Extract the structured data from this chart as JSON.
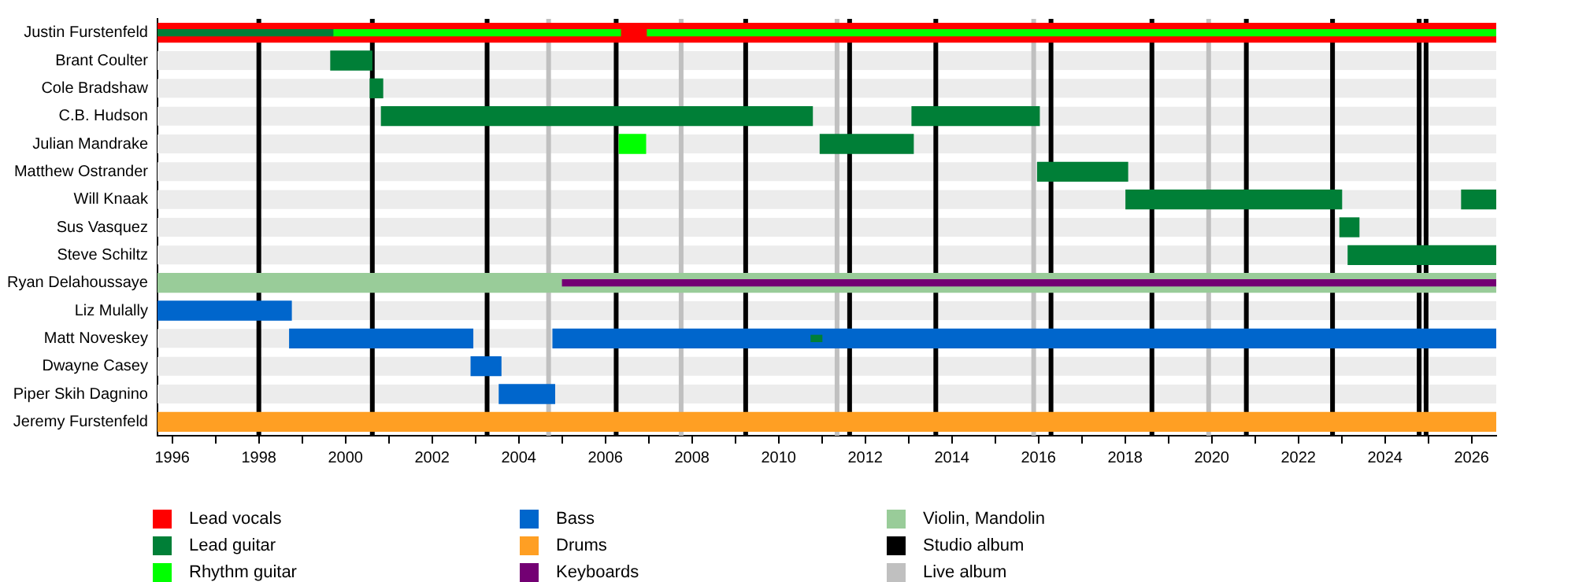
{
  "chart_data": {
    "type": "bar",
    "orientation": "horizontal",
    "categories": [
      "Justin Furstenfeld",
      "Brant Coulter",
      "Cole Bradshaw",
      "C.B. Hudson",
      "Julian Mandrake",
      "Matthew Ostrander",
      "Will Knaak",
      "Sus Vasquez",
      "Steve Schiltz",
      "Ryan Delahoussaye",
      "Liz Mulally",
      "Matt Noveskey",
      "Dwayne Casey",
      "Piper Skih Dagnino",
      "Jeremy Furstenfeld"
    ],
    "series": [
      {
        "name": "Lead vocals",
        "color": "#ff0000",
        "base": [
          1995.66,
          null,
          null,
          null,
          null,
          null,
          null,
          null,
          null,
          null,
          null,
          null,
          null,
          null,
          null
        ],
        "values": [
          30.91,
          null,
          null,
          null,
          null,
          null,
          null,
          null,
          null,
          null,
          null,
          null,
          null,
          null,
          null
        ]
      },
      {
        "name": "Lead guitar",
        "color": "#007f37",
        "base": [
          1995.66,
          1999.66,
          2000.57,
          2000.83,
          2010.96,
          2015.98,
          2018.02,
          2022.96,
          2023.15,
          null,
          null,
          2010.75,
          null,
          null,
          null
        ],
        "values": [
          4.05,
          0.95,
          0.29,
          9.95,
          2.15,
          2.08,
          4.98,
          0.44,
          3.42,
          null,
          null,
          0.25,
          null,
          null,
          null
        ]
      },
      {
        "color": "#007f37",
        "base": [
          null,
          null,
          null,
          2013.08,
          null,
          null,
          2025.77,
          null,
          null,
          null,
          null,
          null,
          null,
          null,
          null
        ],
        "values": [
          null,
          null,
          null,
          2.94,
          null,
          null,
          0.8,
          null,
          null,
          null,
          null,
          null,
          null,
          null,
          null
        ]
      },
      {
        "name": "Rhythm guitar",
        "color": "#00ff00",
        "base": [
          1999.71,
          null,
          null,
          null,
          2006.32,
          null,
          null,
          null,
          null,
          null,
          null,
          null,
          null,
          null,
          null
        ],
        "values": [
          6.64,
          null,
          null,
          null,
          0.61,
          null,
          null,
          null,
          null,
          null,
          null,
          null,
          null,
          null,
          null
        ]
      },
      {
        "color": "#00ff00",
        "base": [
          2006.97,
          null,
          null,
          null,
          null,
          null,
          null,
          null,
          null,
          null,
          null,
          null,
          null,
          null,
          null
        ],
        "values": [
          19.6,
          null,
          null,
          null,
          null,
          null,
          null,
          null,
          null,
          null,
          null,
          null,
          null,
          null,
          null
        ]
      },
      {
        "name": "Bass",
        "color": "#0066cc",
        "base": [
          null,
          null,
          null,
          null,
          null,
          null,
          null,
          null,
          null,
          null,
          1995.66,
          1998.71,
          2002.9,
          2003.55,
          null
        ],
        "values": [
          null,
          null,
          null,
          null,
          null,
          null,
          null,
          null,
          null,
          null,
          3.09,
          4.23,
          0.69,
          1.28,
          null
        ]
      },
      {
        "color": "#0066cc",
        "base": [
          null,
          null,
          null,
          null,
          null,
          null,
          null,
          null,
          null,
          null,
          null,
          2004.79,
          null,
          null,
          null
        ],
        "values": [
          null,
          null,
          null,
          null,
          null,
          null,
          null,
          null,
          null,
          null,
          null,
          21.78,
          null,
          null,
          null
        ]
      },
      {
        "name": "Drums",
        "color": "#ff9f23",
        "base": [
          null,
          null,
          null,
          null,
          null,
          null,
          null,
          null,
          null,
          null,
          null,
          null,
          null,
          null,
          1995.66
        ],
        "values": [
          null,
          null,
          null,
          null,
          null,
          null,
          null,
          null,
          null,
          null,
          null,
          null,
          null,
          null,
          30.91
        ]
      },
      {
        "name": "Keyboards",
        "color": "#730073",
        "base": [
          null,
          null,
          null,
          null,
          null,
          null,
          null,
          null,
          null,
          2005.01,
          null,
          null,
          null,
          null,
          null
        ],
        "values": [
          null,
          null,
          null,
          null,
          null,
          null,
          null,
          null,
          null,
          21.56,
          null,
          null,
          null,
          null,
          null
        ]
      },
      {
        "name": "Violin, Mandolin",
        "color": "#99cc99",
        "base": [
          null,
          null,
          null,
          null,
          null,
          null,
          null,
          null,
          null,
          1995.66,
          null,
          null,
          null,
          null,
          null
        ],
        "values": [
          null,
          null,
          null,
          null,
          null,
          null,
          null,
          null,
          null,
          30.91,
          null,
          null,
          null,
          null,
          null
        ]
      }
    ],
    "ref_lines": [
      {
        "axis": "x",
        "value": 1998.0,
        "label": "Studio album",
        "color": "#000000"
      },
      {
        "axis": "x",
        "value": 2000.62,
        "color": "#000000"
      },
      {
        "axis": "x",
        "value": 2003.27,
        "color": "#000000"
      },
      {
        "axis": "x",
        "value": 2006.25,
        "color": "#000000"
      },
      {
        "axis": "x",
        "value": 2009.24,
        "color": "#000000"
      },
      {
        "axis": "x",
        "value": 2011.64,
        "color": "#000000"
      },
      {
        "axis": "x",
        "value": 2013.63,
        "color": "#000000"
      },
      {
        "axis": "x",
        "value": 2016.29,
        "color": "#000000"
      },
      {
        "axis": "x",
        "value": 2018.62,
        "color": "#000000"
      },
      {
        "axis": "x",
        "value": 2020.8,
        "color": "#000000"
      },
      {
        "axis": "x",
        "value": 2022.79,
        "color": "#000000"
      },
      {
        "axis": "x",
        "value": 2024.79,
        "color": "#000000"
      },
      {
        "axis": "x",
        "value": 2024.95,
        "color": "#000000"
      },
      {
        "axis": "x",
        "value": 2004.69,
        "label": "Live album",
        "color": "#c0c0c0"
      },
      {
        "axis": "x",
        "value": 2007.75,
        "color": "#c0c0c0"
      },
      {
        "axis": "x",
        "value": 2011.35,
        "color": "#c0c0c0"
      },
      {
        "axis": "x",
        "value": 2015.89,
        "color": "#c0c0c0"
      },
      {
        "axis": "x",
        "value": 2019.93,
        "color": "#c0c0c0"
      }
    ],
    "xlim": [
      1995.66,
      2026.57
    ],
    "xticks": [
      1996,
      {
        "value": 1997,
        "label": null
      },
      1998,
      {
        "value": 1999,
        "label": null
      },
      2000,
      {
        "value": 2001,
        "label": null
      },
      2002,
      {
        "value": 2003,
        "label": null
      },
      2004,
      {
        "value": 2005,
        "label": null
      },
      2006,
      {
        "value": 2007,
        "label": null
      },
      2008,
      {
        "value": 2009,
        "label": null
      },
      2010,
      {
        "value": 2011,
        "label": null
      },
      2012,
      {
        "value": 2013,
        "label": null
      },
      2014,
      {
        "value": 2015,
        "label": null
      },
      2016,
      {
        "value": 2017,
        "label": null
      },
      2018,
      {
        "value": 2019,
        "label": null
      },
      2020,
      {
        "value": 2021,
        "label": null
      },
      2022,
      {
        "value": 2023,
        "label": null
      },
      2024,
      {
        "value": 2025,
        "label": null
      },
      2026
    ],
    "legend": "bottom"
  }
}
